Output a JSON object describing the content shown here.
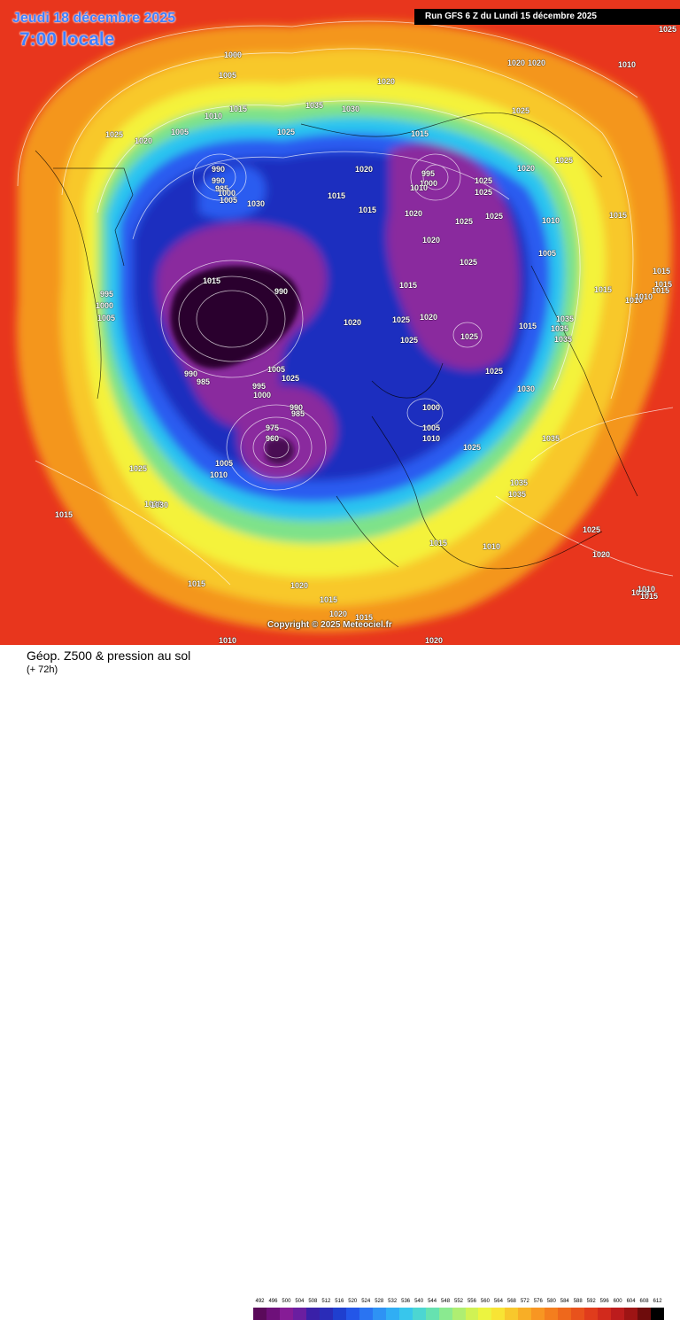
{
  "header": {
    "date_label": "Jeudi 18 décembre 2025",
    "time_label": "7:00 locale",
    "run_label": "Run GFS 6 Z du Lundi 15 décembre 2025"
  },
  "copyright": "Copyright © 2025 Meteociel.fr",
  "footer": {
    "title": "Géop. Z500 & pression au sol",
    "subtitle": "(+ 72h)"
  },
  "colors": {
    "low": "#2a002e",
    "purple": "#8a2a9e",
    "blue_dark": "#1b2fbf",
    "blue": "#2c5cf0",
    "cyan": "#2cc4f0",
    "green": "#7ee28a",
    "yellow": "#f4f23a",
    "orange": "#f4961e",
    "red": "#e8361d"
  },
  "scale": {
    "values": [
      "492",
      "496",
      "500",
      "504",
      "508",
      "512",
      "516",
      "520",
      "524",
      "528",
      "532",
      "536",
      "540",
      "544",
      "548",
      "552",
      "556",
      "560",
      "564",
      "568",
      "572",
      "576",
      "580",
      "584",
      "588",
      "592",
      "596",
      "600",
      "604",
      "608",
      "612"
    ],
    "colors": [
      "#5a0a5a",
      "#6e107a",
      "#861c96",
      "#6a1ea0",
      "#3a20a8",
      "#2a2cb8",
      "#1f3fcf",
      "#2356e8",
      "#2a74f2",
      "#2e92f4",
      "#30aef4",
      "#38c6ec",
      "#4cd6d2",
      "#66e2b0",
      "#8aea90",
      "#aeee72",
      "#d0f254",
      "#ecf440",
      "#f8e434",
      "#f8c82c",
      "#f8ae26",
      "#f89622",
      "#f47e1e",
      "#ee681c",
      "#e8521c",
      "#e03c1c",
      "#d22a1c",
      "#bc1c1c",
      "#9e1414",
      "#6e0c0c",
      "#000000"
    ]
  },
  "pressure_labels": [
    {
      "t": "1000"
    },
    {
      "t": "1005"
    },
    {
      "t": "1010"
    },
    {
      "t": "1015"
    },
    {
      "t": "1020"
    },
    {
      "t": "1025"
    },
    {
      "t": "1005"
    },
    {
      "t": "1035"
    },
    {
      "t": "1030"
    },
    {
      "t": "1020"
    },
    {
      "t": "1025"
    },
    {
      "t": "1020"
    },
    {
      "t": "1020"
    },
    {
      "t": "1015"
    },
    {
      "t": "1010"
    },
    {
      "t": "1025"
    },
    {
      "t": "990"
    },
    {
      "t": "990"
    },
    {
      "t": "985"
    },
    {
      "t": "1000"
    },
    {
      "t": "1005"
    },
    {
      "t": "1030"
    },
    {
      "t": "1020"
    },
    {
      "t": "1025"
    },
    {
      "t": "1025"
    },
    {
      "t": "1015"
    },
    {
      "t": "990"
    },
    {
      "t": "995"
    },
    {
      "t": "1000"
    },
    {
      "t": "1005"
    },
    {
      "t": "1015"
    },
    {
      "t": "1015"
    },
    {
      "t": "1015"
    },
    {
      "t": "1020"
    },
    {
      "t": "995"
    },
    {
      "t": "1000"
    },
    {
      "t": "1010"
    },
    {
      "t": "1025"
    },
    {
      "t": "1025"
    },
    {
      "t": "1020"
    },
    {
      "t": "1025"
    },
    {
      "t": "1020"
    },
    {
      "t": "1025"
    },
    {
      "t": "1010"
    },
    {
      "t": "1015"
    },
    {
      "t": "1005"
    },
    {
      "t": "1025"
    },
    {
      "t": "1015"
    },
    {
      "t": "1020"
    },
    {
      "t": "1025"
    },
    {
      "t": "1025"
    },
    {
      "t": "1020"
    },
    {
      "t": "1010"
    },
    {
      "t": "1015"
    },
    {
      "t": "1035"
    },
    {
      "t": "1035"
    },
    {
      "t": "1035"
    },
    {
      "t": "1010"
    },
    {
      "t": "1015"
    },
    {
      "t": "1015"
    },
    {
      "t": "1030"
    },
    {
      "t": "990"
    },
    {
      "t": "985"
    },
    {
      "t": "1005"
    },
    {
      "t": "1025"
    },
    {
      "t": "995"
    },
    {
      "t": "1000"
    },
    {
      "t": "990"
    },
    {
      "t": "985"
    },
    {
      "t": "975"
    },
    {
      "t": "960"
    },
    {
      "t": "1005"
    },
    {
      "t": "1010"
    },
    {
      "t": "1000"
    },
    {
      "t": "1005"
    },
    {
      "t": "1010"
    },
    {
      "t": "1025"
    },
    {
      "t": "1035"
    },
    {
      "t": "1025"
    },
    {
      "t": "1035"
    },
    {
      "t": "1035"
    },
    {
      "t": "1015"
    },
    {
      "t": "1025"
    },
    {
      "t": "1030"
    },
    {
      "t": "1015"
    },
    {
      "t": "1025"
    },
    {
      "t": "1030"
    },
    {
      "t": "1015"
    },
    {
      "t": "1010"
    },
    {
      "t": "1025"
    },
    {
      "t": "1020"
    },
    {
      "t": "1020"
    },
    {
      "t": "1015"
    },
    {
      "t": "1015"
    },
    {
      "t": "1020"
    },
    {
      "t": "1020"
    },
    {
      "t": "1010"
    },
    {
      "t": "1015"
    },
    {
      "t": "1010"
    },
    {
      "t": "1015"
    },
    {
      "t": "1015"
    }
  ]
}
